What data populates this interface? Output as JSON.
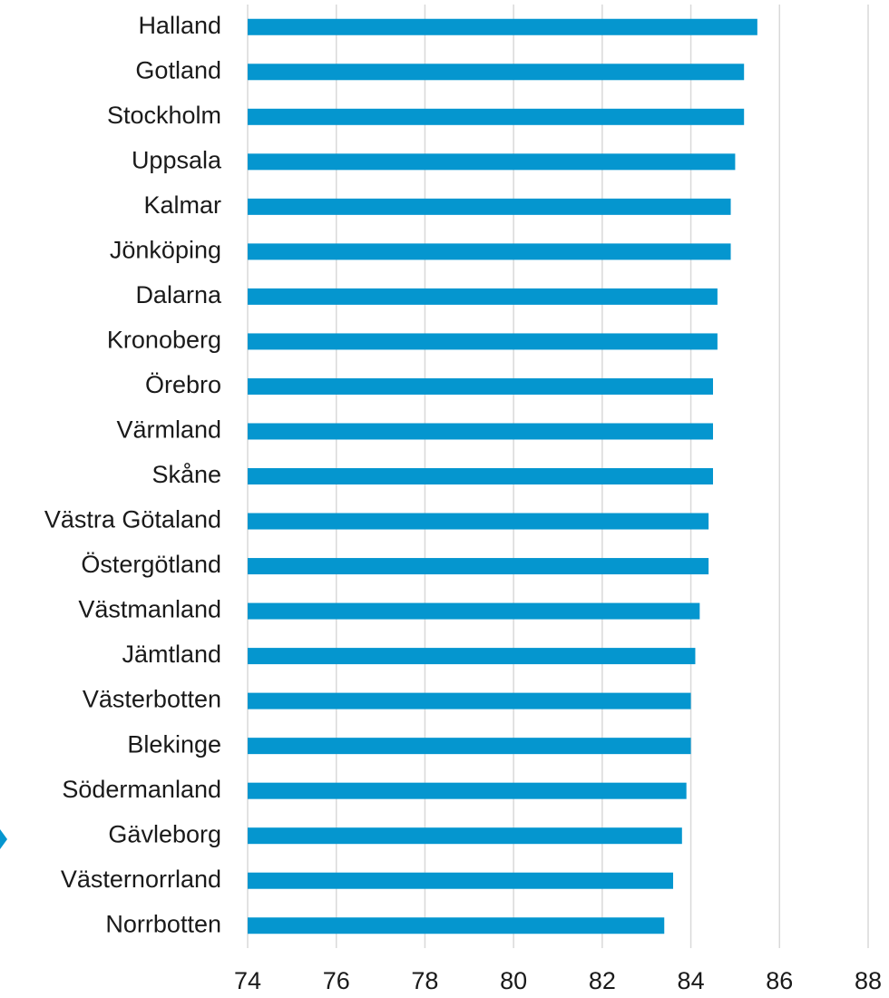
{
  "chart_data": {
    "type": "bar",
    "orientation": "horizontal",
    "categories": [
      "Halland",
      "Gotland",
      "Stockholm",
      "Uppsala",
      "Kalmar",
      "Jönköping",
      "Dalarna",
      "Kronoberg",
      "Örebro",
      "Värmland",
      "Skåne",
      "Västra Götaland",
      "Östergötland",
      "Västmanland",
      "Jämtland",
      "Västerbotten",
      "Blekinge",
      "Södermanland",
      "Gävleborg",
      "Västernorrland",
      "Norrbotten"
    ],
    "values": [
      85.5,
      85.2,
      85.2,
      85.0,
      84.9,
      84.9,
      84.6,
      84.6,
      84.5,
      84.5,
      84.5,
      84.4,
      84.4,
      84.2,
      84.1,
      84.0,
      84.0,
      83.9,
      83.8,
      83.6,
      83.4
    ],
    "color": "#0596cf",
    "xlim": [
      74,
      88
    ],
    "xticks": [
      74,
      76,
      78,
      80,
      82,
      84,
      86,
      88
    ],
    "grid": true
  }
}
